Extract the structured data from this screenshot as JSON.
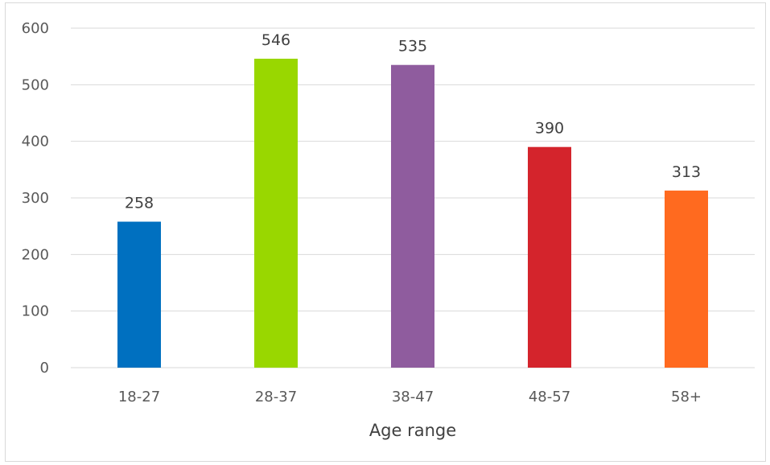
{
  "chart_data": {
    "type": "bar",
    "categories": [
      "18-27",
      "28-37",
      "38-47",
      "48-57",
      "58+"
    ],
    "values": [
      258,
      546,
      535,
      390,
      313
    ],
    "data_labels": [
      "258",
      "546",
      "535",
      "390",
      "313"
    ],
    "colors": [
      "#0070C0",
      "#99D700",
      "#8F5C9E",
      "#D4242C",
      "#FF6A1F"
    ],
    "title": "",
    "xlabel": "Age range",
    "ylabel": "",
    "ylim": [
      0,
      600
    ],
    "yticks": [
      0,
      100,
      200,
      300,
      400,
      500,
      600
    ],
    "ytick_labels": [
      "0",
      "100",
      "200",
      "300",
      "400",
      "500",
      "600"
    ],
    "grid": true,
    "gridline_color": "#d9d9d9",
    "legend": "none"
  }
}
